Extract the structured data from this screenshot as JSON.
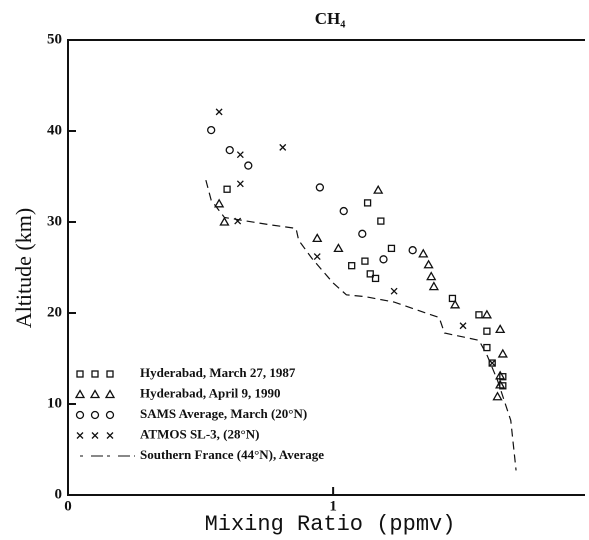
{
  "chart_data": {
    "type": "scatter",
    "title": "CH₄",
    "x_label": "Mixing Ratio (ppmv)",
    "y_label": "Altitude (km)",
    "xlim": [
      0,
      1.95
    ],
    "xticks": [
      0,
      1
    ],
    "ylim": [
      0,
      50
    ],
    "yticks": [
      0,
      10,
      20,
      30,
      40,
      50
    ],
    "legend": "lower left",
    "series": [
      {
        "name": "Hyderabad, March 27, 1987",
        "marker": "square",
        "color": "#111",
        "x": [
          0.6,
          1.13,
          1.18,
          1.22,
          1.12,
          1.07,
          1.14,
          1.16,
          1.45,
          1.55,
          1.58,
          1.58,
          1.6,
          1.64,
          1.64
        ],
        "values": [
          33.6,
          32.1,
          30.1,
          27.1,
          25.7,
          25.2,
          24.3,
          23.8,
          21.6,
          19.8,
          18.0,
          16.2,
          14.5,
          13.0,
          12.0
        ]
      },
      {
        "name": "Hyderabad, April 9, 1990",
        "marker": "triangle",
        "color": "#111",
        "x": [
          0.57,
          0.59,
          0.94,
          1.02,
          1.17,
          1.34,
          1.36,
          1.37,
          1.38,
          1.46,
          1.58,
          1.63,
          1.64,
          1.63,
          1.63,
          1.62
        ],
        "values": [
          32.0,
          30.0,
          28.2,
          27.1,
          33.5,
          26.5,
          25.3,
          24.0,
          22.9,
          20.9,
          19.8,
          18.2,
          15.5,
          13.1,
          12.1,
          10.8
        ]
      },
      {
        "name": "SAMS Average, March (20°N)",
        "marker": "circle",
        "color": "#111",
        "x": [
          0.54,
          0.61,
          0.68,
          0.95,
          1.04,
          1.11,
          1.19,
          1.3
        ],
        "values": [
          40.1,
          37.9,
          36.2,
          33.8,
          31.2,
          28.7,
          25.9,
          26.9
        ]
      },
      {
        "name": "ATMOS SL-3, (28°N)",
        "marker": "x",
        "color": "#111",
        "x": [
          0.57,
          0.81,
          0.65,
          0.65,
          0.64,
          0.94,
          1.23,
          1.49,
          1.6
        ],
        "values": [
          42.1,
          38.2,
          37.4,
          34.2,
          30.1,
          26.2,
          22.4,
          18.6,
          14.5
        ]
      },
      {
        "name": "Southern France (44°N), Average",
        "marker": "dashed-line",
        "color": "#111",
        "x": [
          0.52,
          0.54,
          0.59,
          0.76,
          0.86,
          0.87,
          0.92,
          1.0,
          1.05,
          1.12,
          1.23,
          1.4,
          1.42,
          1.55,
          1.58,
          1.62,
          1.67,
          1.69
        ],
        "values": [
          34.6,
          32.4,
          30.5,
          29.7,
          29.3,
          28.0,
          26.0,
          23.3,
          22.0,
          21.8,
          21.2,
          19.5,
          17.8,
          17.0,
          15.4,
          12.6,
          8.2,
          2.7
        ]
      }
    ]
  }
}
